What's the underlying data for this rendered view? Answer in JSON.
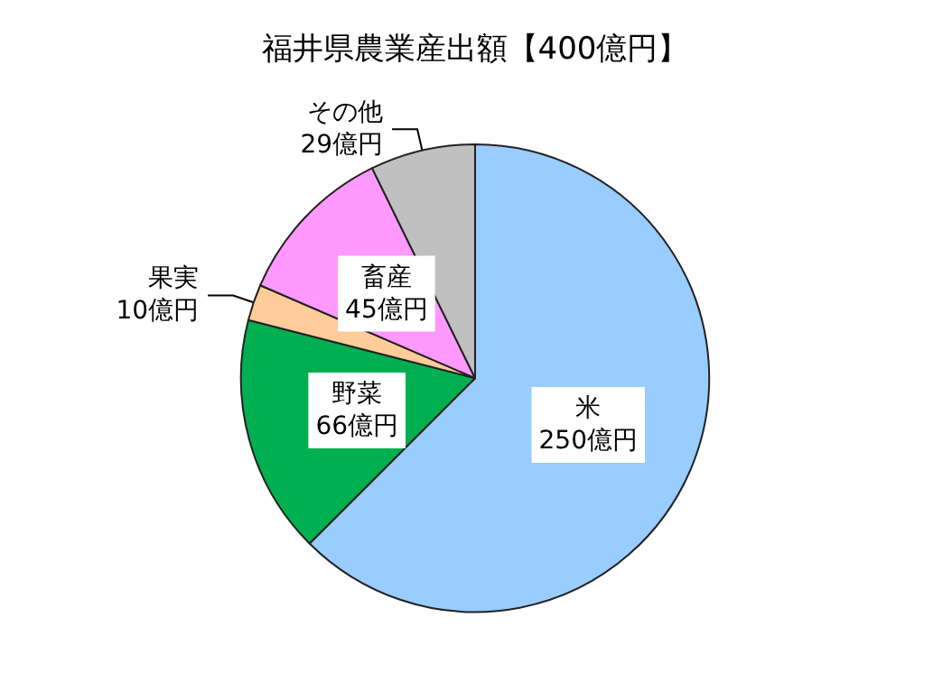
{
  "chart_data": {
    "type": "pie",
    "title": "福井県農業産出額【400億円】",
    "categories": [
      "米",
      "野菜",
      "果実",
      "畜産",
      "その他"
    ],
    "values": [
      250,
      66,
      10,
      45,
      29
    ],
    "value_labels": [
      "250億円",
      "66億円",
      "10億円",
      "45億円",
      "29億円"
    ],
    "colors": [
      "#99ccff",
      "#00b050",
      "#ffcc99",
      "#ff99ff",
      "#c0c0c0"
    ],
    "legend": false
  }
}
